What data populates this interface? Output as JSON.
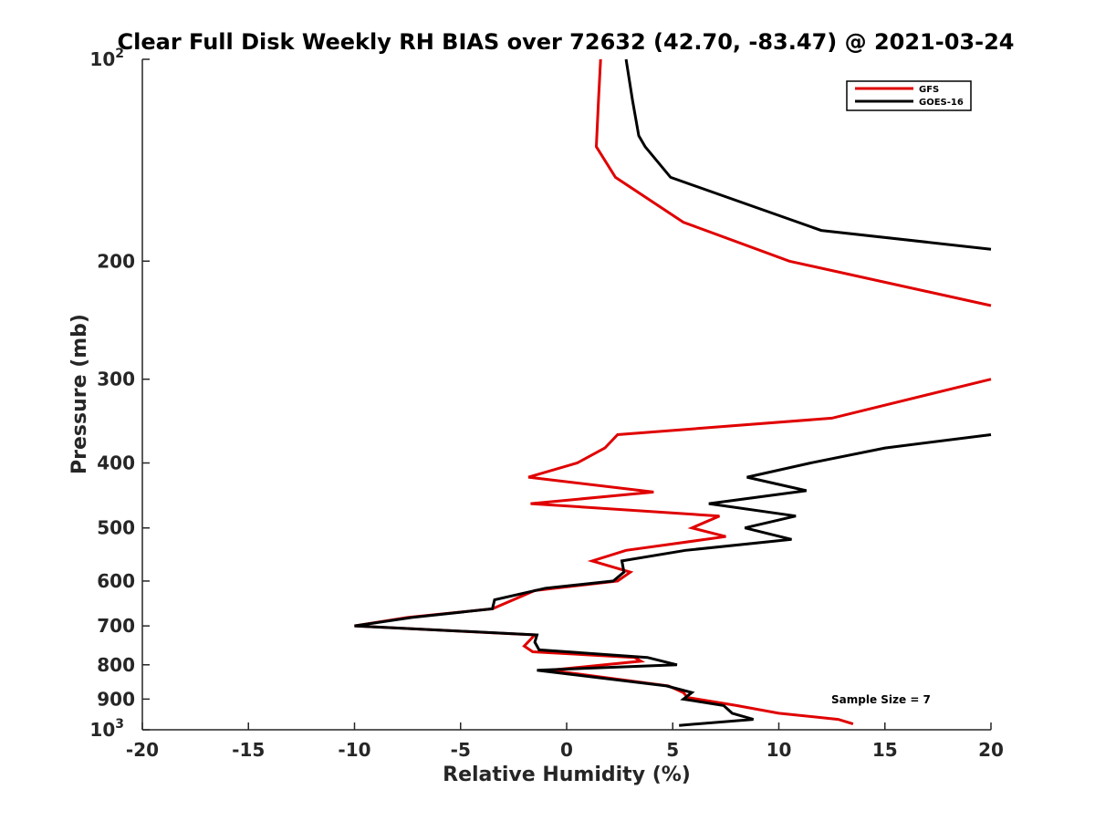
{
  "chart_data": {
    "type": "line",
    "title": "Clear Full Disk Weekly RH BIAS over 72632 (42.70, -83.47) @ 2021-03-24",
    "xlabel": "Relative Humidity (%)",
    "ylabel": "Pressure (mb)",
    "xlim": [
      -20,
      20
    ],
    "ylim": [
      100,
      1000
    ],
    "y_scale": "log",
    "y_reversed": true,
    "grid": false,
    "legend_position": "top-right",
    "annotation": "Sample Size = 7",
    "x_ticks": [
      "-20",
      "-15",
      "-10",
      "-5",
      "0",
      "5",
      "10",
      "15",
      "20"
    ],
    "y_ticks": [
      {
        "base": "10",
        "exp": "2",
        "value": 100
      },
      {
        "base": "200",
        "exp": "",
        "value": 200
      },
      {
        "base": "300",
        "exp": "",
        "value": 300
      },
      {
        "base": "400",
        "exp": "",
        "value": 400
      },
      {
        "base": "500",
        "exp": "",
        "value": 500
      },
      {
        "base": "600",
        "exp": "",
        "value": 600
      },
      {
        "base": "700",
        "exp": "",
        "value": 700
      },
      {
        "base": "800",
        "exp": "",
        "value": 800
      },
      {
        "base": "900",
        "exp": "",
        "value": 900
      },
      {
        "base": "10",
        "exp": "3",
        "value": 1000
      }
    ],
    "series": [
      {
        "name": "GFS",
        "color": "#e00000",
        "points": [
          [
            1.6,
            100
          ],
          [
            1.5,
            115
          ],
          [
            1.4,
            135
          ],
          [
            2.3,
            150
          ],
          [
            5.5,
            175
          ],
          [
            10.5,
            200
          ],
          [
            20,
            233
          ],
          [
            null,
            null
          ],
          [
            20,
            300
          ],
          [
            12.5,
            343
          ],
          [
            2.4,
            363
          ],
          [
            1.8,
            380
          ],
          [
            0.5,
            400
          ],
          [
            -1.8,
            420
          ],
          [
            4.1,
            442
          ],
          [
            -1.7,
            460
          ],
          [
            7.2,
            480
          ],
          [
            5.9,
            500
          ],
          [
            7.5,
            515
          ],
          [
            2.8,
            540
          ],
          [
            1.2,
            560
          ],
          [
            3.0,
            582
          ],
          [
            2.4,
            600
          ],
          [
            -1.5,
            620
          ],
          [
            -3.5,
            660
          ],
          [
            -7.5,
            680
          ],
          [
            -10.0,
            700
          ],
          [
            -1.5,
            722
          ],
          [
            -2.0,
            750
          ],
          [
            -1.6,
            765
          ],
          [
            3.2,
            780
          ],
          [
            3.5,
            790
          ],
          [
            -0.8,
            815
          ],
          [
            4.8,
            860
          ],
          [
            5.5,
            880
          ],
          [
            5.7,
            895
          ],
          [
            8.0,
            920
          ],
          [
            10.0,
            945
          ],
          [
            12.8,
            965
          ],
          [
            13.5,
            980
          ]
        ]
      },
      {
        "name": "GOES-16",
        "color": "#000000",
        "points": [
          [
            2.8,
            100
          ],
          [
            3.1,
            115
          ],
          [
            3.4,
            130
          ],
          [
            3.7,
            135
          ],
          [
            4.9,
            150
          ],
          [
            12.0,
            180
          ],
          [
            20,
            192
          ],
          [
            null,
            null
          ],
          [
            20,
            363
          ],
          [
            15.0,
            380
          ],
          [
            11.5,
            400
          ],
          [
            8.5,
            420
          ],
          [
            11.3,
            440
          ],
          [
            6.7,
            460
          ],
          [
            10.8,
            480
          ],
          [
            8.4,
            500
          ],
          [
            10.6,
            520
          ],
          [
            5.6,
            540
          ],
          [
            2.6,
            560
          ],
          [
            2.7,
            582
          ],
          [
            2.2,
            600
          ],
          [
            -1.0,
            615
          ],
          [
            -3.4,
            640
          ],
          [
            -3.5,
            660
          ],
          [
            -7.3,
            680
          ],
          [
            -10.0,
            700
          ],
          [
            -1.4,
            722
          ],
          [
            -1.5,
            740
          ],
          [
            -1.3,
            760
          ],
          [
            3.8,
            780
          ],
          [
            5.2,
            800
          ],
          [
            -1.4,
            815
          ],
          [
            4.7,
            860
          ],
          [
            5.9,
            880
          ],
          [
            5.5,
            900
          ],
          [
            7.4,
            920
          ],
          [
            7.8,
            945
          ],
          [
            8.8,
            965
          ],
          [
            5.3,
            985
          ]
        ]
      }
    ]
  }
}
